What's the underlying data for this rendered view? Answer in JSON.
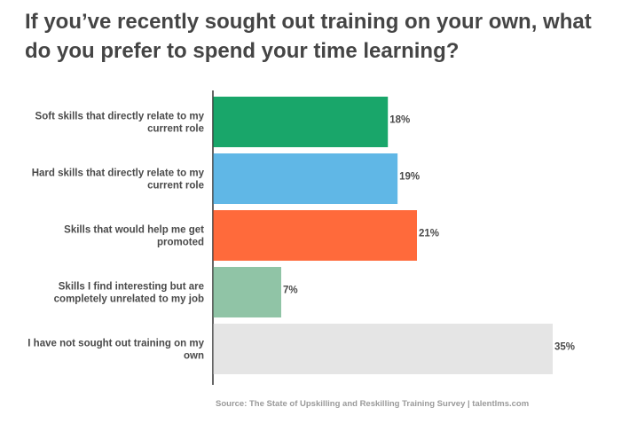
{
  "chart_data": {
    "type": "bar",
    "orientation": "horizontal",
    "title": "If you’ve recently sought out training on your own, what do you prefer to spend your time learning?",
    "categories": [
      [
        "Soft skills that directly relate to my",
        "current role"
      ],
      [
        "Hard skills that directly relate to my",
        "current role"
      ],
      [
        "Skills that would help me get",
        "promoted"
      ],
      [
        "Skills I find interesting but are",
        "completely unrelated to my job"
      ],
      [
        "I have not sought out training on my",
        "own"
      ]
    ],
    "values": [
      18,
      19,
      21,
      7,
      35
    ],
    "value_labels": [
      "18%",
      "19%",
      "21%",
      "7%",
      "35%"
    ],
    "colors": [
      "#19a66a",
      "#60b7e6",
      "#ff6a3b",
      "#90c4a6",
      "#e5e5e5"
    ],
    "xlim": [
      0,
      35
    ],
    "grid": false,
    "legend": "none",
    "source": "Source: The State of Upskilling and Reskilling Training Survey  |  talentlms.com"
  }
}
